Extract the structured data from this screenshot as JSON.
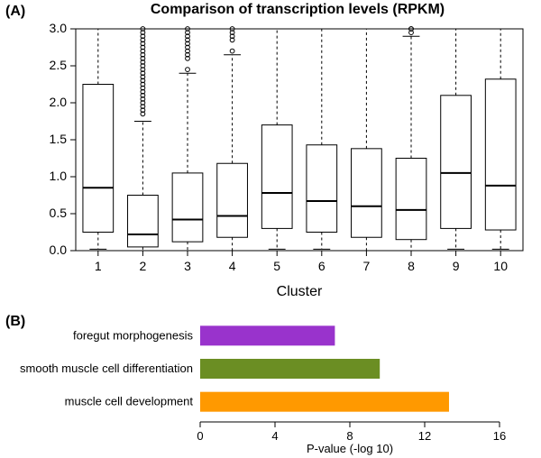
{
  "panelA": {
    "label": "(A)",
    "title": "Comparison of transcription levels (RPKM)",
    "type": "boxplot",
    "xlabel": "Cluster",
    "xlabel_fontsize": 16,
    "title_fontsize": 16,
    "ylim": [
      0,
      3.0
    ],
    "yticks": [
      0.0,
      0.5,
      1.0,
      1.5,
      2.0,
      2.5,
      3.0
    ],
    "ytick_labels": [
      "0.0",
      "0.5",
      "1.0",
      "1.5",
      "2.0",
      "2.5",
      "3.0"
    ],
    "categories": [
      "1",
      "2",
      "3",
      "4",
      "5",
      "6",
      "7",
      "8",
      "9",
      "10"
    ],
    "box_color": "#000000",
    "background_color": "#ffffff",
    "box_width": 0.68,
    "boxes": [
      {
        "q1": 0.25,
        "median": 0.85,
        "q3": 2.25,
        "wlo": 0.02,
        "whi": 3.0,
        "outliers": []
      },
      {
        "q1": 0.05,
        "median": 0.22,
        "q3": 0.75,
        "wlo": 0.0,
        "whi": 1.75,
        "outliers": [
          1.85,
          1.9,
          1.95,
          2.0,
          2.05,
          2.1,
          2.15,
          2.2,
          2.25,
          2.3,
          2.35,
          2.4,
          2.45,
          2.5,
          2.55,
          2.6,
          2.65,
          2.7,
          2.75,
          2.8,
          2.85,
          2.9,
          2.95,
          3.0
        ]
      },
      {
        "q1": 0.12,
        "median": 0.42,
        "q3": 1.05,
        "wlo": 0.0,
        "whi": 2.4,
        "outliers": [
          2.45,
          2.6,
          2.65,
          2.7,
          2.75,
          2.8,
          2.85,
          2.9,
          2.95,
          3.0
        ]
      },
      {
        "q1": 0.18,
        "median": 0.47,
        "q3": 1.18,
        "wlo": 0.0,
        "whi": 2.65,
        "outliers": [
          2.7,
          2.85,
          2.9,
          2.95,
          3.0
        ]
      },
      {
        "q1": 0.3,
        "median": 0.78,
        "q3": 1.7,
        "wlo": 0.02,
        "whi": 3.0,
        "outliers": []
      },
      {
        "q1": 0.25,
        "median": 0.67,
        "q3": 1.43,
        "wlo": 0.02,
        "whi": 3.0,
        "outliers": []
      },
      {
        "q1": 0.18,
        "median": 0.6,
        "q3": 1.38,
        "wlo": 0.0,
        "whi": 3.0,
        "outliers": []
      },
      {
        "q1": 0.15,
        "median": 0.55,
        "q3": 1.25,
        "wlo": 0.0,
        "whi": 2.9,
        "outliers": [
          2.95,
          3.0,
          3.02
        ]
      },
      {
        "q1": 0.3,
        "median": 1.05,
        "q3": 2.1,
        "wlo": 0.02,
        "whi": 3.0,
        "outliers": []
      },
      {
        "q1": 0.28,
        "median": 0.88,
        "q3": 2.32,
        "wlo": 0.02,
        "whi": 3.0,
        "outliers": []
      }
    ]
  },
  "panelB": {
    "label": "(B)",
    "type": "bar",
    "xlabel": "P-value (-log 10)",
    "xlabel_fontsize": 13,
    "xlim": [
      0,
      16
    ],
    "xticks": [
      0,
      4,
      8,
      12,
      16
    ],
    "bar_height": 0.6,
    "bars": [
      {
        "label": "foregut morphogenesis",
        "value": 7.2,
        "color": "#9933cc"
      },
      {
        "label": "smooth muscle cell differentiation",
        "value": 9.6,
        "color": "#6b8e23"
      },
      {
        "label": "muscle cell development",
        "value": 13.3,
        "color": "#ff9900"
      }
    ]
  }
}
